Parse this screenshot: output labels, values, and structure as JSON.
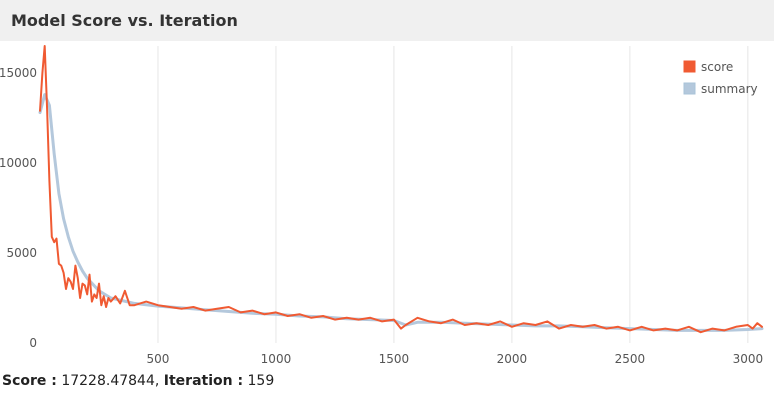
{
  "header": {
    "title": "Model Score vs. Iteration"
  },
  "status": {
    "score_label": "Score :",
    "score_value": "17228.47844",
    "iteration_label": "Iteration :",
    "iteration_value": "159"
  },
  "colors": {
    "score": "#f05a32",
    "summary": "#b4c8dc",
    "grid": "#e6e6e6"
  },
  "chart_data": {
    "type": "line",
    "title": "Model Score vs. Iteration",
    "xlabel": "",
    "ylabel": "",
    "xlim": [
      0,
      3060
    ],
    "ylim": [
      0,
      16500
    ],
    "xticks": [
      500,
      1000,
      1500,
      2000,
      2500,
      3000
    ],
    "yticks": [
      0,
      5000,
      10000,
      15000
    ],
    "grid": "vertical",
    "legend": "top-right",
    "series": [
      {
        "name": "score",
        "x": [
          0,
          10,
          20,
          30,
          40,
          50,
          60,
          70,
          80,
          90,
          100,
          110,
          120,
          130,
          140,
          150,
          160,
          170,
          180,
          190,
          200,
          210,
          220,
          230,
          240,
          250,
          260,
          270,
          280,
          290,
          300,
          320,
          340,
          360,
          380,
          400,
          450,
          500,
          550,
          600,
          650,
          700,
          750,
          800,
          850,
          900,
          950,
          1000,
          1050,
          1100,
          1150,
          1200,
          1250,
          1300,
          1350,
          1400,
          1450,
          1500,
          1530,
          1550,
          1600,
          1650,
          1700,
          1750,
          1800,
          1850,
          1900,
          1950,
          2000,
          2050,
          2100,
          2150,
          2200,
          2250,
          2300,
          2350,
          2400,
          2450,
          2500,
          2550,
          2600,
          2650,
          2700,
          2750,
          2800,
          2850,
          2900,
          2950,
          3000,
          3020,
          3040,
          3060
        ],
        "values": [
          12900,
          15000,
          16500,
          13000,
          9000,
          5900,
          5600,
          5800,
          4400,
          4300,
          3900,
          3000,
          3600,
          3400,
          3000,
          4300,
          3600,
          2500,
          3300,
          3200,
          2700,
          3800,
          2300,
          2700,
          2500,
          3300,
          2100,
          2600,
          2000,
          2500,
          2300,
          2600,
          2200,
          2900,
          2100,
          2100,
          2300,
          2100,
          2000,
          1900,
          2000,
          1800,
          1900,
          2000,
          1700,
          1800,
          1600,
          1700,
          1500,
          1600,
          1400,
          1500,
          1300,
          1400,
          1300,
          1400,
          1200,
          1300,
          800,
          1000,
          1400,
          1200,
          1100,
          1300,
          1000,
          1100,
          1000,
          1200,
          900,
          1100,
          1000,
          1200,
          800,
          1000,
          900,
          1000,
          800,
          900,
          700,
          900,
          700,
          800,
          700,
          900,
          600,
          800,
          700,
          900,
          1000,
          800,
          1100,
          900
        ]
      },
      {
        "name": "summary",
        "x": [
          0,
          20,
          40,
          60,
          80,
          100,
          120,
          140,
          160,
          180,
          200,
          250,
          300,
          400,
          500,
          600,
          700,
          800,
          900,
          1000,
          1100,
          1200,
          1300,
          1400,
          1500,
          1550,
          1600,
          1700,
          1800,
          1900,
          2000,
          2100,
          2200,
          2300,
          2400,
          2500,
          2600,
          2700,
          2800,
          2900,
          3000,
          3060
        ],
        "values": [
          12800,
          13800,
          13200,
          10500,
          8300,
          6900,
          5900,
          5100,
          4500,
          4000,
          3600,
          2900,
          2500,
          2200,
          2050,
          1950,
          1850,
          1750,
          1650,
          1600,
          1500,
          1450,
          1350,
          1300,
          1250,
          1000,
          1150,
          1150,
          1100,
          1050,
          1000,
          950,
          950,
          900,
          850,
          800,
          750,
          700,
          700,
          700,
          750,
          800
        ]
      }
    ]
  }
}
